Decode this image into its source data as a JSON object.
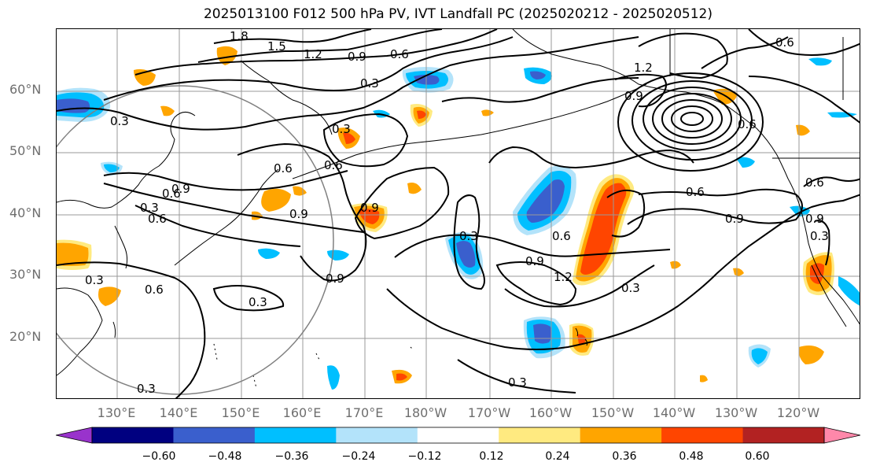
{
  "title": "2025013100 F012 500 hPa PV, IVT Landfall PC (2025020212 - 2025020512)",
  "lat_labels": [
    "60°N",
    "50°N",
    "40°N",
    "30°N",
    "20°N"
  ],
  "lon_labels": [
    "130°E",
    "140°E",
    "150°E",
    "160°E",
    "170°E",
    "180°W",
    "170°W",
    "160°W",
    "150°W",
    "140°W",
    "130°W",
    "120°W"
  ],
  "contour_labels": [
    "1.8",
    "1.5",
    "1.2",
    "0.9",
    "0.6",
    "0.3",
    "0.6",
    "1.2",
    "0.9",
    "0.6",
    "0.3",
    "0.3",
    "0.6",
    "0.6",
    "0.3",
    "0.9",
    "0.6",
    "0.9",
    "0.6",
    "0.9",
    "0.3",
    "0.9",
    "0.3",
    "0.6",
    "0.3",
    "0.6",
    "0.9",
    "0.9",
    "1.2",
    "0.3",
    "0.6",
    "0.9",
    "0.6",
    "0.3",
    "0.3",
    "0.3"
  ],
  "colorbar": {
    "colors": [
      "#9933cc",
      "#000080",
      "#3a5fcd",
      "#00bfff",
      "#b3e3fa",
      "#ffffff",
      "#ffea80",
      "#ffa500",
      "#ff4500",
      "#b22222",
      "#ff88aa"
    ],
    "tick_labels": [
      "−0.60",
      "−0.48",
      "−0.36",
      "−0.24",
      "−0.12",
      "0.12",
      "0.24",
      "0.36",
      "0.48",
      "0.60"
    ]
  },
  "colors": {
    "gridline": "#999999",
    "contour": "#000000",
    "coastline": "#000000",
    "circle": "#808080",
    "positive_low": "#ffea80",
    "positive_mid": "#ffa500",
    "positive_high": "#ff4500",
    "negative_low": "#b3e3fa",
    "negative_mid": "#00bfff",
    "negative_high": "#3a5fcd"
  }
}
